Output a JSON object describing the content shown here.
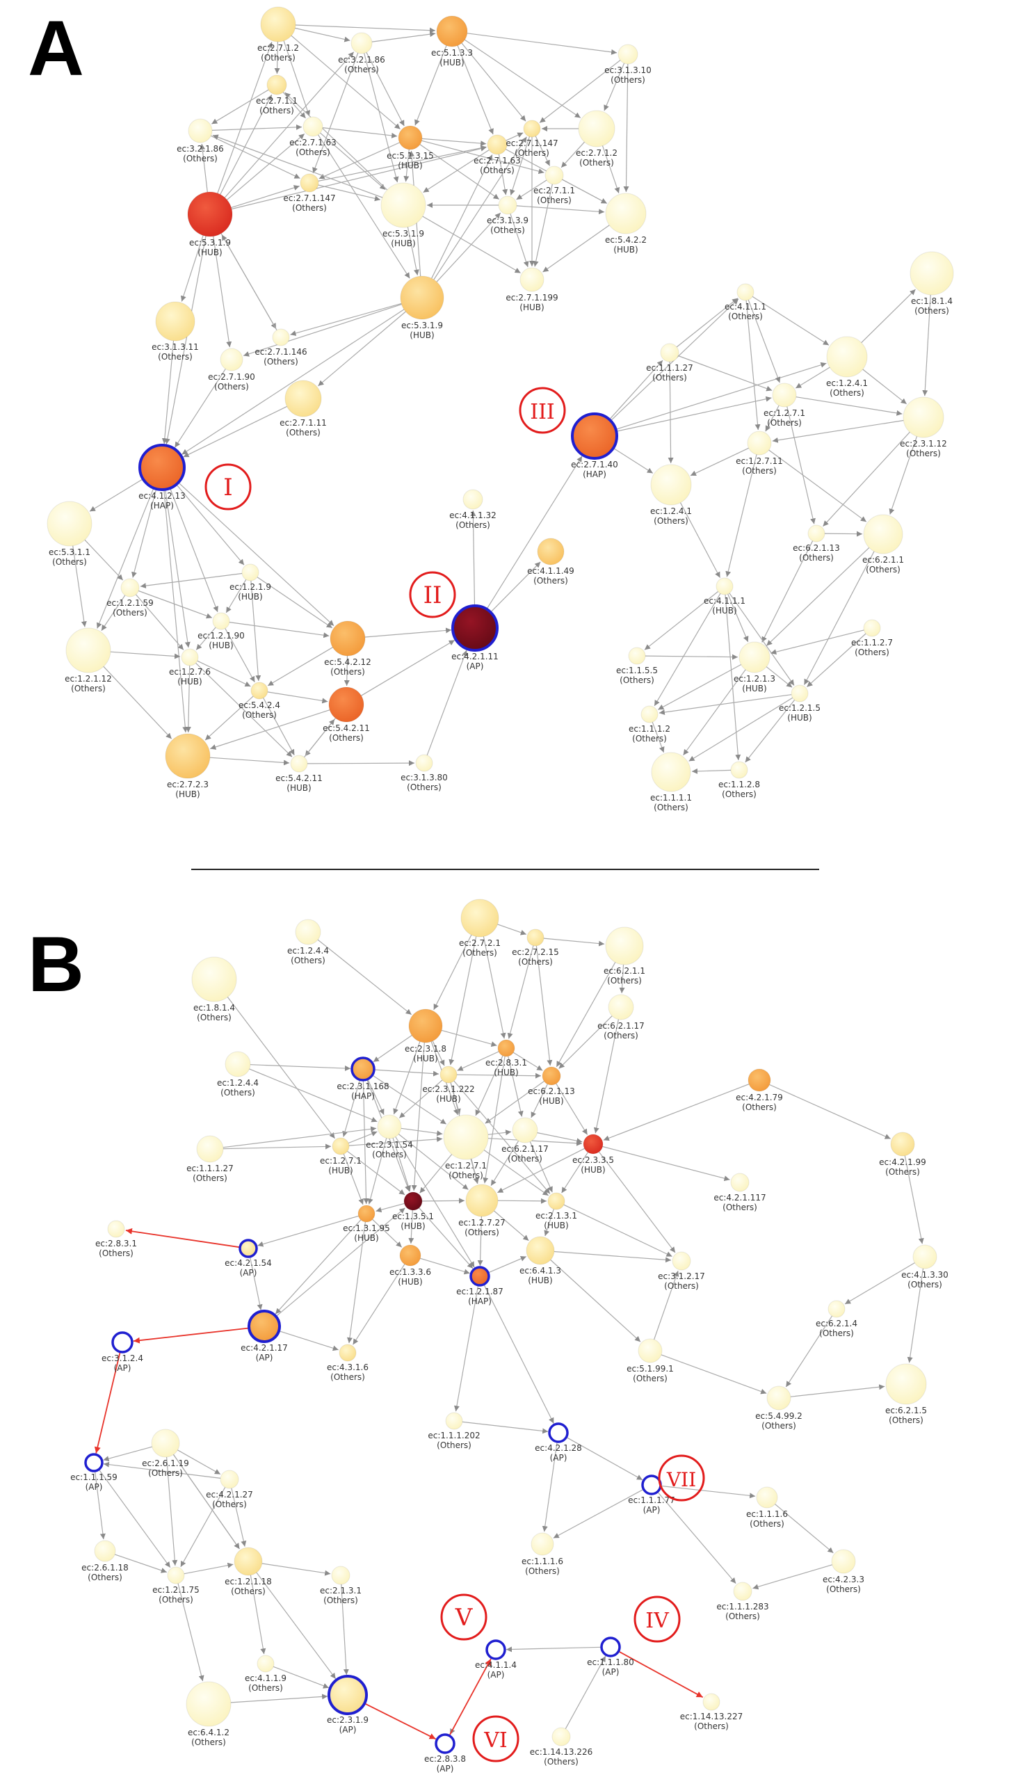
{
  "panels": [
    "A",
    "B"
  ],
  "colors": {
    "edge": "#a9a9a9",
    "arrow": "#888888",
    "highlight_edge": "#e8332a",
    "ring_blue": "#1f1fd0",
    "roman_marker": "#e21c1c",
    "pale": "#fefbd8",
    "light": "#fce9a6",
    "yellow": "#fdd57c",
    "orange": "#f7a94f",
    "darkorange": "#f07030",
    "red": "#e6382a",
    "maroon": "#7a0e1b"
  },
  "markers": [
    "I",
    "II",
    "III",
    "IV",
    "V",
    "VI",
    "VII"
  ],
  "nodesA": [
    {
      "id": "a1",
      "ec": "ec:2.7.1.2",
      "role": "(Others)",
      "c": "light"
    },
    {
      "id": "a2",
      "ec": "ec:3.2.1.86",
      "role": "(Others)",
      "c": "pale"
    },
    {
      "id": "a3",
      "ec": "ec:5.1.3.3",
      "role": "(HUB)",
      "c": "orange"
    },
    {
      "id": "a4",
      "ec": "ec:3.1.3.10",
      "role": "(Others)",
      "c": "pale"
    },
    {
      "id": "a5",
      "ec": "ec:2.7.1.1",
      "role": "(Others)",
      "c": "light"
    },
    {
      "id": "a6",
      "ec": "ec:3.2.1.86",
      "role": "(Others)",
      "c": "pale"
    },
    {
      "id": "a7",
      "ec": "ec:2.7.1.63",
      "role": "(Others)",
      "c": "pale"
    },
    {
      "id": "a8",
      "ec": "ec:5.1.3.15",
      "role": "(HUB)",
      "c": "orange"
    },
    {
      "id": "a9",
      "ec": "ec:2.7.1.147",
      "role": "(Others)",
      "c": "light"
    },
    {
      "id": "a10",
      "ec": "ec:2.7.1.63",
      "role": "(Others)",
      "c": "light"
    },
    {
      "id": "a11",
      "ec": "ec:2.7.1.2",
      "role": "(Others)",
      "c": "pale"
    },
    {
      "id": "a12",
      "ec": "ec:2.7.1.147",
      "role": "(Others)",
      "c": "light"
    },
    {
      "id": "a13",
      "ec": "ec:2.7.1.1",
      "role": "(Others)",
      "c": "pale"
    },
    {
      "id": "a14",
      "ec": "ec:3.1.3.9",
      "role": "(Others)",
      "c": "pale"
    },
    {
      "id": "a15",
      "ec": "ec:5.3.1.9",
      "role": "(HUB)",
      "c": "red"
    },
    {
      "id": "a16",
      "ec": "ec:5.3.1.9",
      "role": "(HUB)",
      "c": "pale"
    },
    {
      "id": "a17",
      "ec": "ec:5.4.2.2",
      "role": "(HUB)",
      "c": "pale"
    },
    {
      "id": "a18",
      "ec": "ec:2.7.1.199",
      "role": "(HUB)",
      "c": "pale"
    },
    {
      "id": "a19",
      "ec": "ec:5.3.1.9",
      "role": "(HUB)",
      "c": "yellow"
    },
    {
      "id": "a20",
      "ec": "ec:3.1.3.11",
      "role": "(Others)",
      "c": "light"
    },
    {
      "id": "a21",
      "ec": "ec:2.7.1.146",
      "role": "(Others)",
      "c": "pale"
    },
    {
      "id": "a22",
      "ec": "ec:2.7.1.90",
      "role": "(Others)",
      "c": "pale"
    },
    {
      "id": "a23",
      "ec": "ec:2.7.1.11",
      "role": "(Others)",
      "c": "light"
    },
    {
      "id": "a24",
      "ec": "ec:4.1.2.13",
      "role": "(HAP)",
      "c": "darkorange",
      "ring": true
    },
    {
      "id": "a25",
      "ec": "ec:5.3.1.1",
      "role": "(Others)",
      "c": "pale"
    },
    {
      "id": "a26",
      "ec": "ec:1.2.1.9",
      "role": "(HUB)",
      "c": "pale"
    },
    {
      "id": "a27",
      "ec": "ec:1.2.1.59",
      "role": "(Others)",
      "c": "pale"
    },
    {
      "id": "a28",
      "ec": "ec:1.2.1.90",
      "role": "(HUB)",
      "c": "pale"
    },
    {
      "id": "a29",
      "ec": "ec:1.2.1.12",
      "role": "(Others)",
      "c": "pale"
    },
    {
      "id": "a30",
      "ec": "ec:1.2.7.6",
      "role": "(HUB)",
      "c": "pale"
    },
    {
      "id": "a31",
      "ec": "ec:5.4.2.12",
      "role": "(Others)",
      "c": "orange"
    },
    {
      "id": "a32",
      "ec": "ec:5.4.2.4",
      "role": "(Others)",
      "c": "light"
    },
    {
      "id": "a33",
      "ec": "ec:5.4.2.11",
      "role": "(Others)",
      "c": "darkorange"
    },
    {
      "id": "a34",
      "ec": "ec:2.7.2.3",
      "role": "(HUB)",
      "c": "yellow"
    },
    {
      "id": "a35",
      "ec": "ec:5.4.2.11",
      "role": "(HUB)",
      "c": "pale"
    },
    {
      "id": "a36",
      "ec": "ec:3.1.3.80",
      "role": "(Others)",
      "c": "pale"
    },
    {
      "id": "a37",
      "ec": "ec:4.2.1.11",
      "role": "(AP)",
      "c": "maroon",
      "ring": true
    },
    {
      "id": "a38",
      "ec": "ec:4.1.1.32",
      "role": "(Others)",
      "c": "pale"
    },
    {
      "id": "a39",
      "ec": "ec:4.1.1.49",
      "role": "(Others)",
      "c": "yellow"
    },
    {
      "id": "a40",
      "ec": "ec:2.7.1.40",
      "role": "(HAP)",
      "c": "darkorange",
      "ring": true
    },
    {
      "id": "a41",
      "ec": "ec:1.1.1.27",
      "role": "(Others)",
      "c": "pale"
    },
    {
      "id": "a42",
      "ec": "ec:4.1.1.1",
      "role": "(Others)",
      "c": "pale"
    },
    {
      "id": "a43",
      "ec": "ec:1.2.4.1",
      "role": "(Others)",
      "c": "pale"
    },
    {
      "id": "a44",
      "ec": "ec:1.8.1.4",
      "role": "(Others)",
      "c": "pale"
    },
    {
      "id": "a45",
      "ec": "ec:1.2.7.1",
      "role": "(Others)",
      "c": "pale"
    },
    {
      "id": "a46",
      "ec": "ec:2.3.1.12",
      "role": "(Others)",
      "c": "pale"
    },
    {
      "id": "a47",
      "ec": "ec:1.2.7.11",
      "role": "(Others)",
      "c": "pale"
    },
    {
      "id": "a48",
      "ec": "ec:1.2.4.1",
      "role": "(Others)",
      "c": "pale"
    },
    {
      "id": "a49",
      "ec": "ec:6.2.1.13",
      "role": "(Others)",
      "c": "pale"
    },
    {
      "id": "a50",
      "ec": "ec:6.2.1.1",
      "role": "(Others)",
      "c": "pale"
    },
    {
      "id": "a51",
      "ec": "ec:4.1.1.1",
      "role": "(HUB)",
      "c": "pale"
    },
    {
      "id": "a52",
      "ec": "ec:1.1.5.5",
      "role": "(Others)",
      "c": "pale"
    },
    {
      "id": "a53",
      "ec": "ec:1.1.2.7",
      "role": "(Others)",
      "c": "pale"
    },
    {
      "id": "a54",
      "ec": "ec:1.2.1.3",
      "role": "(HUB)",
      "c": "pale"
    },
    {
      "id": "a55",
      "ec": "ec:1.2.1.5",
      "role": "(HUB)",
      "c": "pale"
    },
    {
      "id": "a56",
      "ec": "ec:1.1.1.2",
      "role": "(Others)",
      "c": "pale"
    },
    {
      "id": "a57",
      "ec": "ec:1.1.2.8",
      "role": "(Others)",
      "c": "pale"
    },
    {
      "id": "a58",
      "ec": "ec:1.1.1.1",
      "role": "(Others)",
      "c": "pale"
    }
  ],
  "nodesB": [
    {
      "id": "b1",
      "ec": "ec:1.2.4.4",
      "role": "(Others)",
      "c": "pale"
    },
    {
      "id": "b2",
      "ec": "ec:1.8.1.4",
      "role": "(Others)",
      "c": "pale"
    },
    {
      "id": "b3",
      "ec": "ec:2.7.2.1",
      "role": "(Others)",
      "c": "light"
    },
    {
      "id": "b4",
      "ec": "ec:2.7.2.15",
      "role": "(Others)",
      "c": "light"
    },
    {
      "id": "b5",
      "ec": "ec:6.2.1.1",
      "role": "(Others)",
      "c": "pale"
    },
    {
      "id": "b6",
      "ec": "ec:6.2.1.17",
      "role": "(Others)",
      "c": "pale"
    },
    {
      "id": "b7",
      "ec": "ec:2.3.1.8",
      "role": "(HUB)",
      "c": "orange"
    },
    {
      "id": "b8",
      "ec": "ec:2.8.3.1",
      "role": "(HUB)",
      "c": "orange"
    },
    {
      "id": "b9",
      "ec": "ec:2.3.1.168",
      "role": "(HAP)",
      "c": "orange",
      "ring": true
    },
    {
      "id": "b10",
      "ec": "ec:2.3.1.222",
      "role": "(HUB)",
      "c": "light"
    },
    {
      "id": "b11",
      "ec": "ec:6.2.1.13",
      "role": "(HUB)",
      "c": "orange"
    },
    {
      "id": "b12",
      "ec": "ec:1.2.4.4",
      "role": "(Others)",
      "c": "pale"
    },
    {
      "id": "b13",
      "ec": "ec:4.2.1.79",
      "role": "(Others)",
      "c": "orange"
    },
    {
      "id": "b14",
      "ec": "ec:1.1.1.27",
      "role": "(Others)",
      "c": "pale"
    },
    {
      "id": "b15",
      "ec": "ec:1.2.7.1",
      "role": "(HUB)",
      "c": "light"
    },
    {
      "id": "b16",
      "ec": "ec:2.3.1.54",
      "role": "(Others)",
      "c": "pale"
    },
    {
      "id": "b17",
      "ec": "ec:1.2.7.1",
      "role": "(Others)",
      "c": "pale"
    },
    {
      "id": "b18",
      "ec": "ec:6.2.1.17",
      "role": "(Others)",
      "c": "pale"
    },
    {
      "id": "b19",
      "ec": "ec:2.3.3.5",
      "role": "(HUB)",
      "c": "red"
    },
    {
      "id": "b20",
      "ec": "ec:4.2.1.99",
      "role": "(Others)",
      "c": "light"
    },
    {
      "id": "b21",
      "ec": "ec:4.2.1.117",
      "role": "(Others)",
      "c": "pale"
    },
    {
      "id": "b22",
      "ec": "ec:1.3.5.1",
      "role": "(HUB)",
      "c": "maroon"
    },
    {
      "id": "b23",
      "ec": "ec:1.3.1.95",
      "role": "(HUB)",
      "c": "orange"
    },
    {
      "id": "b24",
      "ec": "ec:1.2.7.27",
      "role": "(Others)",
      "c": "light"
    },
    {
      "id": "b25",
      "ec": "ec:2.1.3.1",
      "role": "(HUB)",
      "c": "light"
    },
    {
      "id": "b26",
      "ec": "ec:2.8.3.1",
      "role": "(Others)",
      "c": "pale"
    },
    {
      "id": "b27",
      "ec": "ec:4.2.1.54",
      "role": "(AP)",
      "c": "light",
      "ring": true
    },
    {
      "id": "b28",
      "ec": "ec:1.3.3.6",
      "role": "(HUB)",
      "c": "orange"
    },
    {
      "id": "b29",
      "ec": "ec:1.2.1.87",
      "role": "(HAP)",
      "c": "darkorange",
      "ring": true
    },
    {
      "id": "b30",
      "ec": "ec:6.4.1.3",
      "role": "(HUB)",
      "c": "light"
    },
    {
      "id": "b31",
      "ec": "ec:3.1.2.17",
      "role": "(Others)",
      "c": "pale"
    },
    {
      "id": "b32",
      "ec": "ec:4.1.3.30",
      "role": "(Others)",
      "c": "pale"
    },
    {
      "id": "b33",
      "ec": "ec:3.1.2.4",
      "role": "(AP)",
      "c": "white",
      "ring": true
    },
    {
      "id": "b34",
      "ec": "ec:4.2.1.17",
      "role": "(AP)",
      "c": "orange",
      "ring": true
    },
    {
      "id": "b35",
      "ec": "ec:4.3.1.6",
      "role": "(Others)",
      "c": "light"
    },
    {
      "id": "b36",
      "ec": "ec:6.2.1.4",
      "role": "(Others)",
      "c": "pale"
    },
    {
      "id": "b37",
      "ec": "ec:5.1.99.1",
      "role": "(Others)",
      "c": "pale"
    },
    {
      "id": "b38",
      "ec": "ec:5.4.99.2",
      "role": "(Others)",
      "c": "pale"
    },
    {
      "id": "b39",
      "ec": "ec:6.2.1.5",
      "role": "(Others)",
      "c": "pale"
    },
    {
      "id": "b40",
      "ec": "ec:1.1.1.202",
      "role": "(Others)",
      "c": "pale"
    },
    {
      "id": "b41",
      "ec": "ec:4.2.1.28",
      "role": "(AP)",
      "c": "white",
      "ring": true
    },
    {
      "id": "b42",
      "ec": "ec:2.6.1.19",
      "role": "(Others)",
      "c": "pale"
    },
    {
      "id": "b43",
      "ec": "ec:1.1.1.59",
      "role": "(AP)",
      "c": "white",
      "ring": true
    },
    {
      "id": "b44",
      "ec": "ec:4.2.1.27",
      "role": "(Others)",
      "c": "pale"
    },
    {
      "id": "b45",
      "ec": "ec:1.1.1.77",
      "role": "(AP)",
      "c": "white",
      "ring": true
    },
    {
      "id": "b46",
      "ec": "ec:1.1.1.6",
      "role": "(Others)",
      "c": "pale"
    },
    {
      "id": "b47",
      "ec": "ec:1.1.1.6",
      "role": "(Others)",
      "c": "pale"
    },
    {
      "id": "b48",
      "ec": "ec:2.6.1.18",
      "role": "(Others)",
      "c": "pale"
    },
    {
      "id": "b49",
      "ec": "ec:1.2.1.75",
      "role": "(Others)",
      "c": "pale"
    },
    {
      "id": "b50",
      "ec": "ec:1.2.1.18",
      "role": "(Others)",
      "c": "light"
    },
    {
      "id": "b51",
      "ec": "ec:2.1.3.1",
      "role": "(Others)",
      "c": "pale"
    },
    {
      "id": "b52",
      "ec": "ec:4.2.3.3",
      "role": "(Others)",
      "c": "pale"
    },
    {
      "id": "b53",
      "ec": "ec:1.1.1.283",
      "role": "(Others)",
      "c": "pale"
    },
    {
      "id": "b54",
      "ec": "ec:4.1.1.4",
      "role": "(AP)",
      "c": "white",
      "ring": true
    },
    {
      "id": "b55",
      "ec": "ec:1.1.1.80",
      "role": "(AP)",
      "c": "white",
      "ring": true
    },
    {
      "id": "b56",
      "ec": "ec:4.1.1.9",
      "role": "(Others)",
      "c": "pale"
    },
    {
      "id": "b57",
      "ec": "ec:6.4.1.2",
      "role": "(Others)",
      "c": "pale"
    },
    {
      "id": "b58",
      "ec": "ec:2.3.1.9",
      "role": "(AP)",
      "c": "light",
      "ring": true
    },
    {
      "id": "b59",
      "ec": "ec:2.8.3.8",
      "role": "(AP)",
      "c": "white",
      "ring": true
    },
    {
      "id": "b60",
      "ec": "ec:1.14.13.226",
      "role": "(Others)",
      "c": "pale"
    },
    {
      "id": "b61",
      "ec": "ec:1.14.13.227",
      "role": "(Others)",
      "c": "pale"
    }
  ]
}
